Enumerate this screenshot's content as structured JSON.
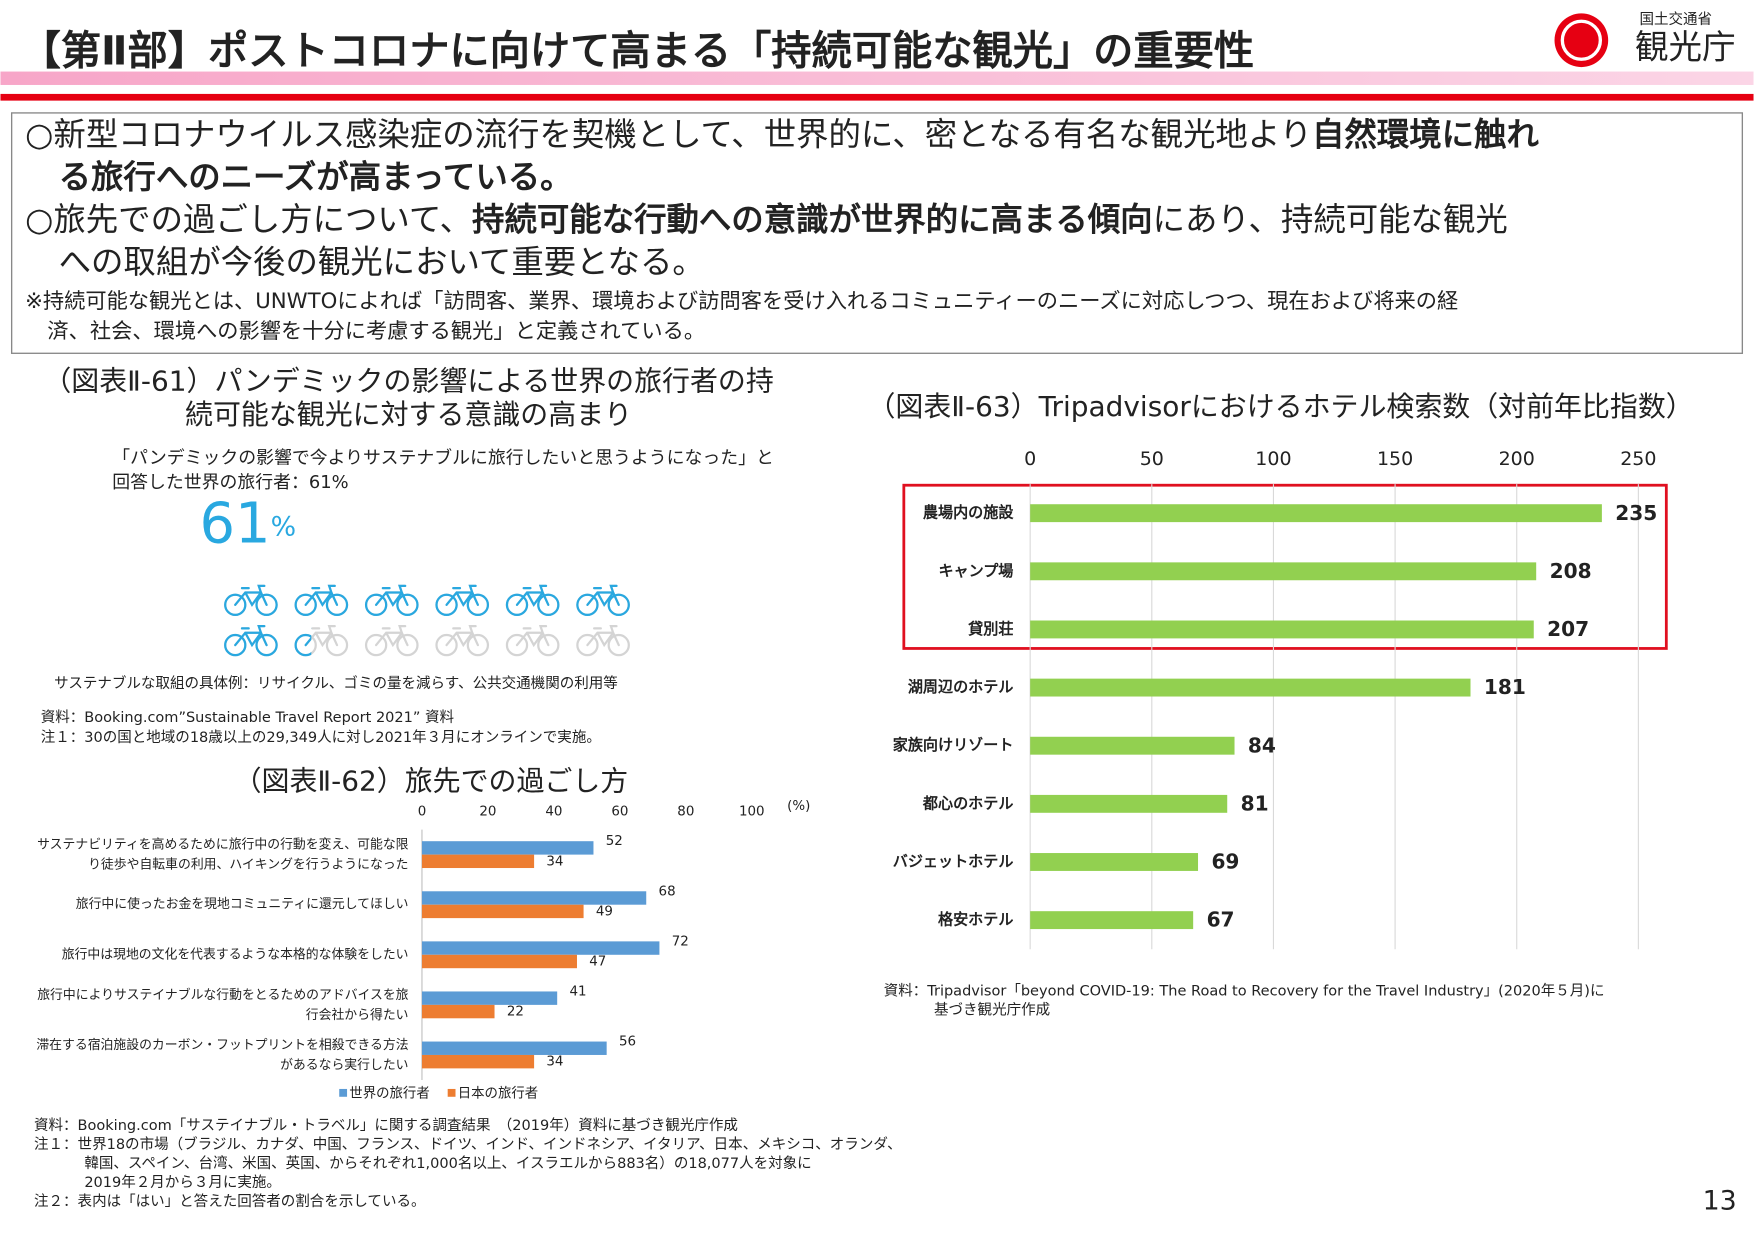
{
  "header": {
    "title": "【第Ⅱ部】ポストコロナに向けて高まる「持続可能な観光」の重要性",
    "ministry": "国土交通省",
    "agency": "観光庁"
  },
  "summary": {
    "lines": [
      {
        "segments": [
          {
            "text": "○新型コロナウイルス感染症の流行を契機として、世界的に、密となる有名な観光地より",
            "bold": false
          },
          {
            "text": "自然環境に触れ",
            "bold": true
          }
        ]
      },
      {
        "segments": [
          {
            "text": "る旅行へのニーズが高まっている。",
            "bold": true
          }
        ]
      },
      {
        "segments": [
          {
            "text": "○旅先での過ごし方について、",
            "bold": false
          },
          {
            "text": "持続可能な行動への意識が世界的に高まる傾向",
            "bold": true
          },
          {
            "text": "にあり、持続可能な観光",
            "bold": false
          }
        ]
      },
      {
        "segments": [
          {
            "text": "への取組が今後の観光において重要となる。",
            "bold": false
          }
        ]
      }
    ],
    "note_lines": [
      "※持続可能な観光とは、UNWTOによれば「訪問客、業界、環境および訪問客を受け入れるコミュニティーのニーズに対応しつつ、現在および将来の経",
      "済、社会、環境への影響を十分に考慮する観光」と定義されている。"
    ]
  },
  "chart_data": [
    {
      "type": "pictograph",
      "title_lines": [
        "（図表Ⅱ-61）パンデミックの影響による世界の旅行者の持",
        "続可能な観光に対する意識の高まり"
      ],
      "quote_lines": [
        "「パンデミックの影響で今よりサステナブルに旅行したいと思うようになった」と",
        "回答した世界の旅行者：61%"
      ],
      "value": 61,
      "unit": "%",
      "color": "#29a8e0",
      "empty_color": "#d4d4d4",
      "notes": [
        {
          "lines": [
            "サステナブルな取組の具体例：リサイクル、ゴミの量を減らす、公共交通機関の利用等"
          ]
        },
        {
          "lines": [
            "資料：Booking.com”Sustainable Travel Report 2021” 資料"
          ]
        },
        {
          "lines": [
            "注１：30の国と地域の18歳以上の29,349人に対し2021年３月にオンラインで実施。"
          ]
        }
      ]
    },
    {
      "type": "bar",
      "orientation": "horizontal",
      "title": "（図表Ⅱ-62）旅先での過ごし方",
      "categories": [
        "サステナビリティを高めるために旅行中の行動を変え、可能な限り徒歩や自転車の利用、ハイキングを行うようになった",
        "旅行中に使ったお金を現地コミュニティに還元してほしい",
        "旅行中は現地の文化を代表するような本格的な体験をしたい",
        "旅行中によりサステイナブルな行動をとるためのアドバイスを旅行会社から得たい",
        "滞在する宿泊施設のカーボン・フットプリントを相殺できる方法があるなら実行したい"
      ],
      "series": [
        {
          "name": "世界の旅行者",
          "color": "#5b9bd5",
          "values": [
            52,
            68,
            72,
            41,
            56
          ]
        },
        {
          "name": "日本の旅行者",
          "color": "#ed7d31",
          "values": [
            34,
            49,
            47,
            22,
            34
          ]
        }
      ],
      "xlim": [
        0,
        100
      ],
      "xticks": [
        0,
        20,
        40,
        60,
        80,
        100
      ],
      "unit_label": "(%)",
      "grid": false,
      "notes": [
        {
          "lines": [
            "資料：Booking.com「サステイナブル・トラベル」に関する調査結果　（2019年）資料に基づき観光庁作成"
          ]
        },
        {
          "lines": [
            "注１：世界18の市場（ブラジル、カナダ、中国、フランス、ドイツ、インド、インドネシア、イタリア、日本、メキシコ、オランダ、",
            "韓国、スペイン、台湾、米国、英国、からそれぞれ1,000名以上、イスラエルから883名）の18,077人を対象に",
            "2019年２月から３月に実施。"
          ]
        },
        {
          "lines": [
            "注２：表内は「はい」と答えた回答者の割合を示している。"
          ]
        }
      ]
    },
    {
      "type": "bar",
      "orientation": "horizontal",
      "title": "（図表Ⅱ-63）Tripadvisorにおけるホテル検索数（対前年比指数）",
      "categories": [
        "農場内の施設",
        "キャンプ場",
        "貸別荘",
        "湖周辺のホテル",
        "家族向けリゾート",
        "都心のホテル",
        "バジェットホテル",
        "格安ホテル"
      ],
      "values": [
        235,
        208,
        207,
        181,
        84,
        81,
        69,
        67
      ],
      "color": "#92d050",
      "xlim": [
        0,
        250
      ],
      "xticks": [
        0,
        50,
        100,
        150,
        200,
        250
      ],
      "grid": true,
      "notes": [
        {
          "lines": [
            "資料：Tripadvisor「beyond COVID-19: The Road to Recovery for the Travel Industry」(2020年５月)に",
            "基づき観光庁作成"
          ]
        }
      ]
    }
  ],
  "page_number": "13"
}
